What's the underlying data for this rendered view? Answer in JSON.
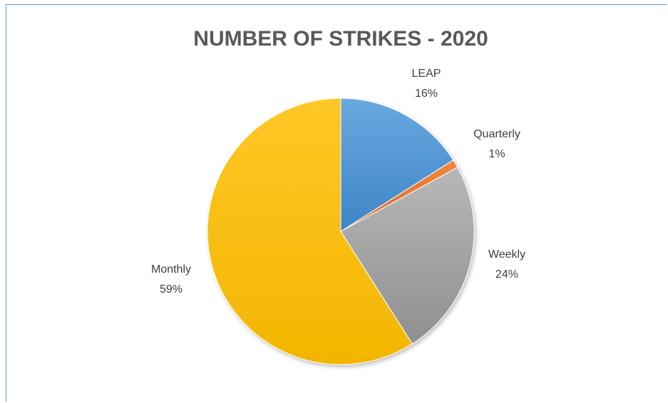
{
  "chart_data": {
    "type": "pie",
    "title": "NUMBER OF STRIKES - 2020",
    "slices": [
      {
        "label": "LEAP",
        "value": 16,
        "display": "16%",
        "color": "#5b9bd5"
      },
      {
        "label": "Quarterly",
        "value": 1,
        "display": "1%",
        "color": "#ed7d31"
      },
      {
        "label": "Weekly",
        "value": 24,
        "display": "24%",
        "color": "#a5a5a5"
      },
      {
        "label": "Monthly",
        "value": 59,
        "display": "59%",
        "color": "#ffc000"
      }
    ],
    "start_angle": "12 o'clock",
    "direction": "clockwise",
    "legend": "none",
    "data_labels": "outside"
  }
}
